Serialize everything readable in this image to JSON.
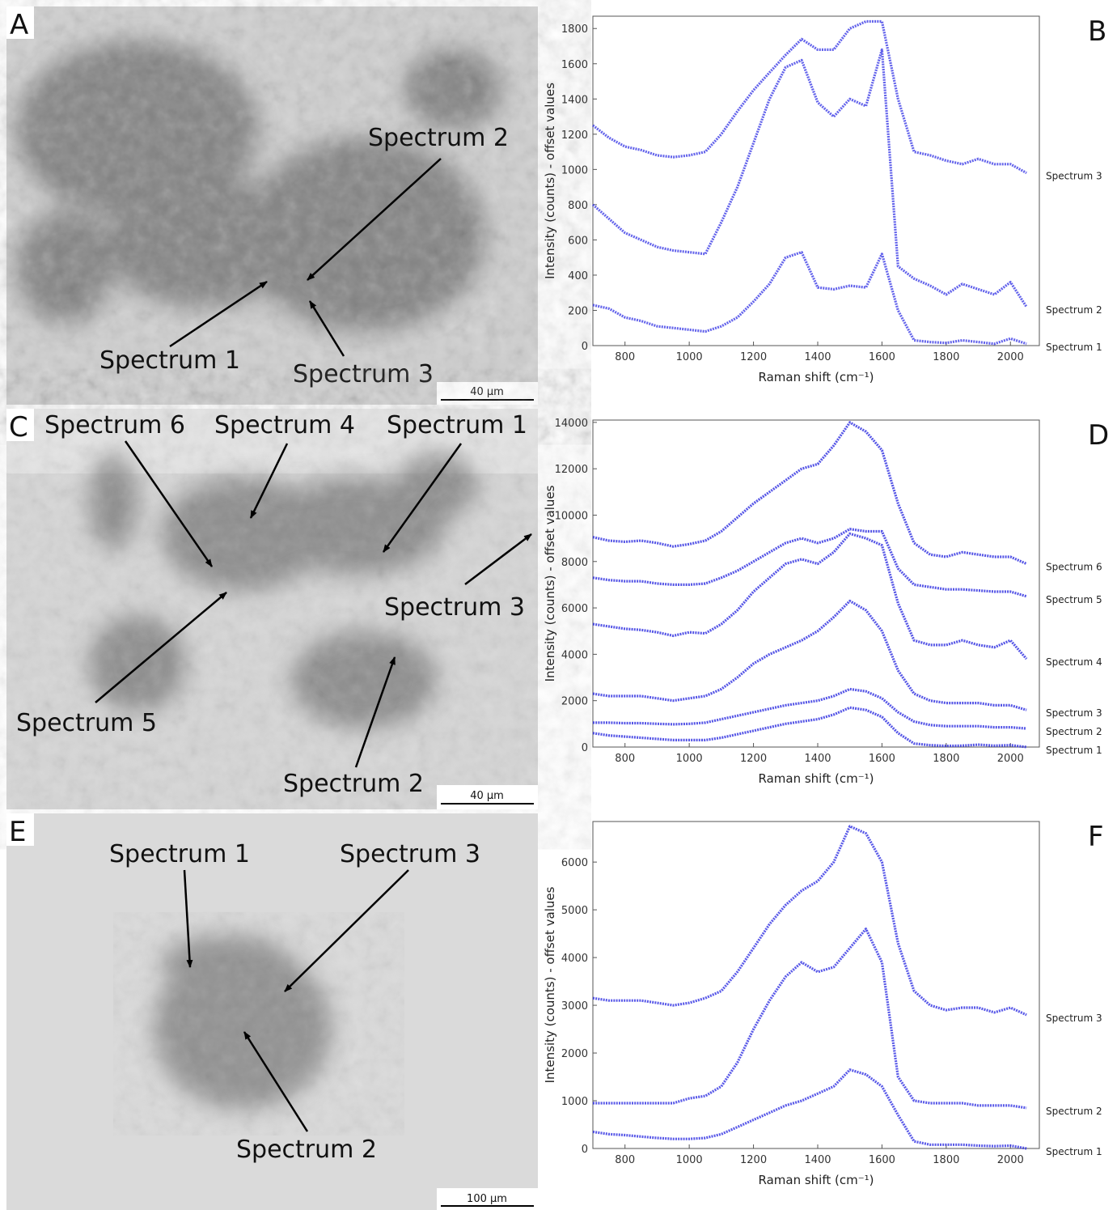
{
  "images": [
    {
      "letter": "A",
      "scale_bar": "40 µm",
      "annotations": [
        "Spectrum 2",
        "Spectrum 1",
        "Spectrum 3"
      ]
    },
    {
      "letter": "C",
      "scale_bar": "40 µm",
      "annotations": [
        "Spectrum 6",
        "Spectrum 4",
        "Spectrum 1",
        "Spectrum 3",
        "Spectrum 5",
        "Spectrum 2"
      ]
    },
    {
      "letter": "E",
      "scale_bar": "100 µm",
      "annotations": [
        "Spectrum 1",
        "Spectrum 3",
        "Spectrum 2"
      ]
    }
  ],
  "chart_data": [
    {
      "type": "line",
      "panel": "B",
      "x_label": "Raman shift (cm⁻¹)",
      "y_label": "Intensity (counts) - offset values",
      "x": [
        700,
        750,
        800,
        850,
        900,
        950,
        1000,
        1050,
        1100,
        1150,
        1200,
        1250,
        1300,
        1350,
        1400,
        1450,
        1500,
        1550,
        1600,
        1650,
        1700,
        1750,
        1800,
        1850,
        1900,
        1950,
        2000,
        2050
      ],
      "xlim": [
        700,
        2090
      ],
      "xticks": [
        800,
        1000,
        1200,
        1400,
        1600,
        1800,
        2000
      ],
      "ylim": [
        0,
        1870
      ],
      "yticks": [
        0,
        200,
        400,
        600,
        800,
        1000,
        1200,
        1400,
        1600,
        1800
      ],
      "series": [
        {
          "name": "Spectrum 3",
          "color": "#3c3ce6",
          "values": [
            1250,
            1180,
            1130,
            1110,
            1080,
            1070,
            1080,
            1100,
            1200,
            1330,
            1450,
            1550,
            1650,
            1740,
            1680,
            1680,
            1800,
            1840,
            1840,
            1400,
            1100,
            1080,
            1050,
            1030,
            1060,
            1030,
            1030,
            980
          ]
        },
        {
          "name": "Spectrum 2",
          "color": "#3c3ce6",
          "values": [
            800,
            720,
            640,
            600,
            560,
            540,
            530,
            520,
            700,
            900,
            1150,
            1400,
            1580,
            1620,
            1380,
            1300,
            1400,
            1360,
            1680,
            450,
            380,
            340,
            290,
            350,
            320,
            290,
            360,
            220
          ]
        },
        {
          "name": "Spectrum 1",
          "color": "#3c3ce6",
          "values": [
            230,
            210,
            160,
            140,
            110,
            100,
            90,
            80,
            110,
            160,
            250,
            350,
            500,
            530,
            330,
            320,
            340,
            330,
            520,
            200,
            30,
            20,
            15,
            30,
            20,
            10,
            40,
            10
          ]
        }
      ]
    },
    {
      "type": "line",
      "panel": "D",
      "x_label": "Raman shift (cm⁻¹)",
      "y_label": "Intensity (counts) - offset values",
      "x": [
        700,
        750,
        800,
        850,
        900,
        950,
        1000,
        1050,
        1100,
        1150,
        1200,
        1250,
        1300,
        1350,
        1400,
        1450,
        1500,
        1550,
        1600,
        1650,
        1700,
        1750,
        1800,
        1850,
        1900,
        1950,
        2000,
        2050
      ],
      "xlim": [
        700,
        2090
      ],
      "xticks": [
        800,
        1000,
        1200,
        1400,
        1600,
        1800,
        2000
      ],
      "ylim": [
        0,
        14100
      ],
      "yticks": [
        0,
        2000,
        4000,
        6000,
        8000,
        10000,
        12000,
        14000
      ],
      "series": [
        {
          "name": "Spectrum 6",
          "color": "#2a2ae0",
          "values": [
            9050,
            8900,
            8850,
            8900,
            8800,
            8650,
            8750,
            8900,
            9300,
            9900,
            10500,
            11000,
            11500,
            12000,
            12200,
            13000,
            14000,
            13600,
            12800,
            10500,
            8800,
            8300,
            8200,
            8400,
            8300,
            8200,
            8200,
            7900
          ]
        },
        {
          "name": "Spectrum 5",
          "color": "#2a2ae0",
          "values": [
            7300,
            7200,
            7150,
            7150,
            7050,
            7000,
            7000,
            7050,
            7300,
            7600,
            8000,
            8400,
            8800,
            9000,
            8800,
            9000,
            9400,
            9300,
            9300,
            7700,
            7000,
            6900,
            6800,
            6800,
            6750,
            6700,
            6700,
            6500
          ]
        },
        {
          "name": "Spectrum 4",
          "color": "#2a2ae0",
          "values": [
            5300,
            5200,
            5100,
            5050,
            4950,
            4800,
            4950,
            4900,
            5300,
            5900,
            6700,
            7300,
            7900,
            8100,
            7900,
            8400,
            9200,
            9000,
            8700,
            6200,
            4600,
            4400,
            4400,
            4600,
            4400,
            4300,
            4600,
            3800
          ]
        },
        {
          "name": "Spectrum 3",
          "color": "#2a2ae0",
          "values": [
            2300,
            2200,
            2200,
            2200,
            2100,
            2000,
            2100,
            2200,
            2500,
            3000,
            3600,
            4000,
            4300,
            4600,
            5000,
            5600,
            6300,
            5900,
            5000,
            3300,
            2300,
            2000,
            1900,
            1900,
            1900,
            1800,
            1800,
            1600
          ]
        },
        {
          "name": "Spectrum 2",
          "color": "#2a2ae0",
          "values": [
            1050,
            1050,
            1030,
            1030,
            1000,
            980,
            1000,
            1050,
            1200,
            1350,
            1500,
            1650,
            1800,
            1900,
            2000,
            2200,
            2500,
            2400,
            2100,
            1500,
            1100,
            950,
            900,
            900,
            900,
            850,
            850,
            800
          ]
        },
        {
          "name": "Spectrum 1",
          "color": "#2a2ae0",
          "values": [
            600,
            500,
            450,
            400,
            350,
            300,
            300,
            300,
            400,
            550,
            700,
            850,
            1000,
            1100,
            1200,
            1400,
            1700,
            1600,
            1300,
            600,
            150,
            80,
            50,
            60,
            100,
            60,
            80,
            0
          ]
        }
      ]
    },
    {
      "type": "line",
      "panel": "F",
      "x_label": "Raman shift (cm⁻¹)",
      "y_label": "Intensity (counts) - offset values",
      "x": [
        700,
        750,
        800,
        850,
        900,
        950,
        1000,
        1050,
        1100,
        1150,
        1200,
        1250,
        1300,
        1350,
        1400,
        1450,
        1500,
        1550,
        1600,
        1650,
        1700,
        1750,
        1800,
        1850,
        1900,
        1950,
        2000,
        2050
      ],
      "xlim": [
        700,
        2090
      ],
      "xticks": [
        800,
        1000,
        1200,
        1400,
        1600,
        1800,
        2000
      ],
      "ylim": [
        0,
        6850
      ],
      "yticks": [
        0,
        1000,
        2000,
        3000,
        4000,
        5000,
        6000
      ],
      "series": [
        {
          "name": "Spectrum 3",
          "color": "#3030e2",
          "values": [
            3150,
            3100,
            3100,
            3100,
            3050,
            3000,
            3050,
            3150,
            3300,
            3700,
            4200,
            4700,
            5100,
            5400,
            5600,
            6000,
            6750,
            6600,
            6000,
            4300,
            3300,
            3000,
            2900,
            2950,
            2950,
            2850,
            2950,
            2800
          ]
        },
        {
          "name": "Spectrum 2",
          "color": "#3030e2",
          "values": [
            950,
            950,
            950,
            950,
            950,
            950,
            1050,
            1100,
            1300,
            1800,
            2500,
            3100,
            3600,
            3900,
            3700,
            3800,
            4200,
            4600,
            3900,
            1500,
            1000,
            950,
            950,
            950,
            900,
            900,
            900,
            850
          ]
        },
        {
          "name": "Spectrum 1",
          "color": "#3030e2",
          "values": [
            350,
            300,
            280,
            250,
            220,
            200,
            200,
            220,
            300,
            450,
            600,
            750,
            900,
            1000,
            1150,
            1300,
            1650,
            1550,
            1300,
            700,
            150,
            80,
            80,
            80,
            60,
            50,
            60,
            0
          ]
        }
      ]
    }
  ]
}
